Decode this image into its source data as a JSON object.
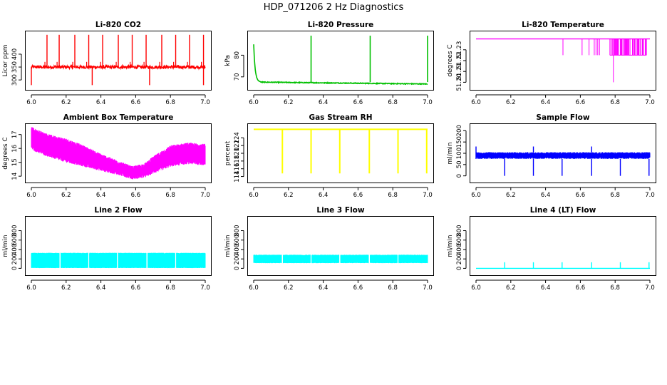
{
  "figure_title": "HDP_071206  2 Hz Diagnostics",
  "chart_data": [
    {
      "type": "line",
      "title": "Li-820 CO2",
      "ylabel": "Licor ppm",
      "color": "#ff0000",
      "xlim": [
        6.0,
        7.0
      ],
      "ylim": [
        270,
        480
      ],
      "x_ticks": [
        6.0,
        6.2,
        6.4,
        6.6,
        6.8,
        7.0
      ],
      "x_tick_labels": [
        "6.0",
        "6.2",
        "6.4",
        "6.6",
        "6.8",
        "7.0"
      ],
      "y_ticks": [
        300,
        350,
        400
      ],
      "y_tick_labels": [
        "300",
        "350",
        "400"
      ],
      "series": [
        {
          "name": "CO2",
          "baseline": 350,
          "noise": 6,
          "spike_up_x": [
            6.09,
            6.16,
            6.25,
            6.33,
            6.41,
            6.5,
            6.58,
            6.66,
            6.75,
            6.83,
            6.91,
            6.99
          ],
          "spike_up_to": 475,
          "spike_down_x": [
            6.0,
            6.35,
            6.68,
            6.99
          ],
          "spike_down_to": 280
        }
      ]
    },
    {
      "type": "line",
      "title": "Li-820 Pressure",
      "ylabel": "kPa",
      "color": "#00c000",
      "xlim": [
        6.0,
        7.0
      ],
      "ylim": [
        65,
        90
      ],
      "x_ticks": [
        6.0,
        6.2,
        6.4,
        6.6,
        6.8,
        7.0
      ],
      "x_tick_labels": [
        "6.0",
        "6.2",
        "6.4",
        "6.6",
        "6.8",
        "7.0"
      ],
      "y_ticks": [
        70,
        80
      ],
      "y_tick_labels": [
        "70",
        "80"
      ],
      "series": [
        {
          "name": "Pressure",
          "start": 67.6,
          "end": 66.7,
          "initial_peak": 85,
          "spike_up_x": [
            6.33,
            6.67,
            7.0
          ],
          "spike_up_to": 89
        }
      ]
    },
    {
      "type": "line",
      "title": "Li-820 Temperature",
      "ylabel": "degrees C",
      "color": "#ff00ff",
      "xlim": [
        6.0,
        7.0
      ],
      "ylim": [
        51.195,
        51.245
      ],
      "x_ticks": [
        6.0,
        6.2,
        6.4,
        6.6,
        6.8,
        7.0
      ],
      "x_tick_labels": [
        "6.0",
        "6.2",
        "6.4",
        "6.6",
        "6.8",
        "7.0"
      ],
      "y_ticks": [
        51.2,
        51.21,
        51.22,
        51.23
      ],
      "y_tick_labels": [
        "51.20",
        "51.21",
        "51.22",
        "51.23"
      ],
      "series": [
        {
          "name": "Temperature",
          "baseline": 51.24,
          "drops_to": 51.225,
          "drop_x": [
            6.5,
            6.61,
            6.65,
            6.68,
            6.69,
            6.7,
            6.71
          ],
          "dense_drop_range": [
            6.77,
            6.98
          ],
          "min_point": {
            "x": 6.79,
            "y": 51.2
          }
        }
      ]
    },
    {
      "type": "area",
      "title": "Ambient Box Temperature",
      "ylabel": "degrees C",
      "color": "#ff00ff",
      "xlim": [
        6.0,
        7.0
      ],
      "ylim": [
        13.7,
        17.6
      ],
      "x_ticks": [
        6.0,
        6.2,
        6.4,
        6.6,
        6.8,
        7.0
      ],
      "x_tick_labels": [
        "6.0",
        "6.2",
        "6.4",
        "6.6",
        "6.8",
        "7.0"
      ],
      "y_ticks": [
        14,
        15,
        16,
        17
      ],
      "y_tick_labels": [
        "14",
        "15",
        "16",
        "17"
      ],
      "series": [
        {
          "name": "Box temperature (band)",
          "x": [
            6.0,
            6.02,
            6.1,
            6.2,
            6.3,
            6.4,
            6.5,
            6.58,
            6.65,
            6.7,
            6.8,
            6.9,
            7.0
          ],
          "upper": [
            17.5,
            17.3,
            16.9,
            16.6,
            16.1,
            15.5,
            15.0,
            14.6,
            14.8,
            15.3,
            16.1,
            16.3,
            16.2
          ],
          "lower": [
            16.1,
            15.9,
            15.5,
            15.1,
            14.8,
            14.5,
            14.2,
            13.9,
            14.0,
            14.3,
            14.8,
            15.0,
            14.9
          ]
        }
      ]
    },
    {
      "type": "line",
      "title": "Gas Stream RH",
      "ylabel": "percent",
      "color": "#ffff00",
      "xlim": [
        6.0,
        7.0
      ],
      "ylim": [
        113,
        127
      ],
      "x_ticks": [
        6.0,
        6.2,
        6.4,
        6.6,
        6.8,
        7.0
      ],
      "x_tick_labels": [
        "6.0",
        "6.2",
        "6.4",
        "6.6",
        "6.8",
        "7.0"
      ],
      "y_ticks": [
        114,
        116,
        118,
        120,
        122,
        124
      ],
      "y_tick_labels": [
        "114",
        "116",
        "118",
        "120",
        "122",
        "124"
      ],
      "series": [
        {
          "name": "RH",
          "baseline": 126.2,
          "dip_x": [
            6.165,
            6.33,
            6.495,
            6.665,
            6.83,
            6.995
          ],
          "dip_to": 114.8
        }
      ]
    },
    {
      "type": "area",
      "title": "Sample Flow",
      "ylabel": "ml/min",
      "color": "#0000ff",
      "xlim": [
        6.0,
        7.0
      ],
      "ylim": [
        -20,
        220
      ],
      "x_ticks": [
        6.0,
        6.2,
        6.4,
        6.6,
        6.8,
        7.0
      ],
      "x_tick_labels": [
        "6.0",
        "6.2",
        "6.4",
        "6.6",
        "6.8",
        "7.0"
      ],
      "y_ticks": [
        0,
        50,
        100,
        150,
        200
      ],
      "y_tick_labels": [
        "0",
        "50",
        "100",
        "150",
        "200"
      ],
      "series": [
        {
          "name": "Sample flow",
          "band": [
            75,
            105
          ],
          "initial_peak": 130,
          "dip_x": [
            6.165,
            6.33,
            6.495,
            6.665,
            6.83,
            6.995
          ],
          "dip_to": 0,
          "spike_up_x": [
            6.33,
            6.665
          ],
          "spike_up_to": 130
        }
      ]
    },
    {
      "type": "area",
      "title": "Line 2 Flow",
      "ylabel": "ml/min",
      "color": "#00ffff",
      "xlim": [
        6.0,
        7.0
      ],
      "ylim": [
        -100,
        1050
      ],
      "x_ticks": [
        6.0,
        6.2,
        6.4,
        6.6,
        6.8,
        7.0
      ],
      "x_tick_labels": [
        "6.0",
        "6.2",
        "6.4",
        "6.6",
        "6.8",
        "7.0"
      ],
      "y_ticks": [
        0,
        200,
        400,
        600,
        800
      ],
      "y_tick_labels": [
        "0",
        "200",
        "400",
        "600",
        "800"
      ],
      "series": [
        {
          "name": "Line 2 flow",
          "band": [
            5,
            330
          ],
          "gap_x": [
            6.165,
            6.33,
            6.495,
            6.665,
            6.83
          ]
        }
      ]
    },
    {
      "type": "area",
      "title": "Line 3 Flow",
      "ylabel": "ml/min",
      "color": "#00ffff",
      "xlim": [
        6.0,
        7.0
      ],
      "ylim": [
        -100,
        1050
      ],
      "x_ticks": [
        6.0,
        6.2,
        6.4,
        6.6,
        6.8,
        7.0
      ],
      "x_tick_labels": [
        "6.0",
        "6.2",
        "6.4",
        "6.6",
        "6.8",
        "7.0"
      ],
      "y_ticks": [
        0,
        200,
        400,
        600,
        800
      ],
      "y_tick_labels": [
        "0",
        "200",
        "400",
        "600",
        "800"
      ],
      "series": [
        {
          "name": "Line 3 flow",
          "band": [
            110,
            290
          ],
          "gap_x": [
            6.165,
            6.33,
            6.495,
            6.665,
            6.83
          ]
        }
      ]
    },
    {
      "type": "line",
      "title": "Line 4 (LT) Flow",
      "ylabel": "ml/min",
      "color": "#00ffff",
      "xlim": [
        6.0,
        7.0
      ],
      "ylim": [
        -100,
        1050
      ],
      "x_ticks": [
        6.0,
        6.2,
        6.4,
        6.6,
        6.8,
        7.0
      ],
      "x_tick_labels": [
        "6.0",
        "6.2",
        "6.4",
        "6.6",
        "6.8",
        "7.0"
      ],
      "y_ticks": [
        0,
        200,
        400,
        600,
        800
      ],
      "y_tick_labels": [
        "0",
        "200",
        "400",
        "600",
        "800"
      ],
      "series": [
        {
          "name": "Line 4 flow",
          "baseline": 0,
          "spike_x": [
            6.165,
            6.33,
            6.495,
            6.665,
            6.83,
            6.995
          ],
          "spike_to": 130
        }
      ]
    }
  ]
}
